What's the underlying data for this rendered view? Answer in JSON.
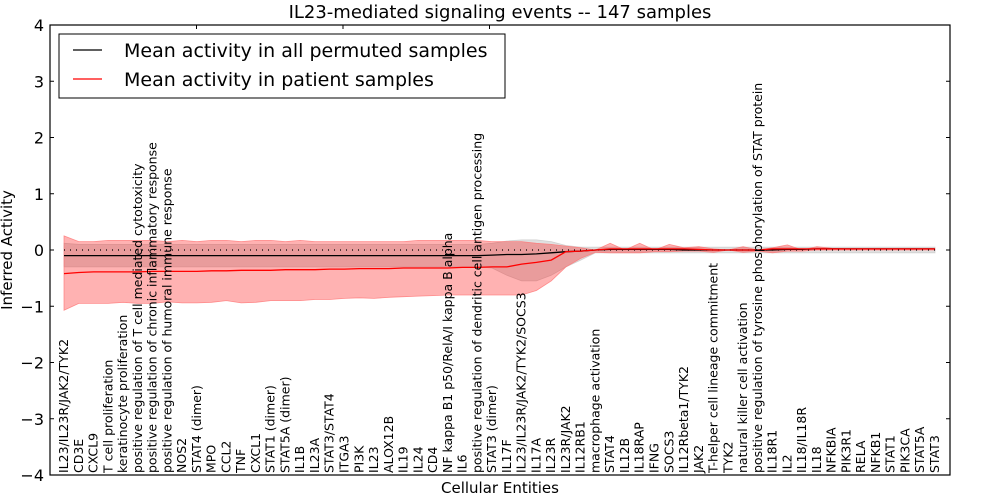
{
  "chart_data": {
    "type": "line",
    "title": "IL23-mediated signaling events -- 147 samples",
    "xlabel": "Cellular Entities",
    "ylabel": "Inferred Activity",
    "ylim": [
      -4,
      4
    ],
    "yticks": [
      -4,
      -3,
      -2,
      -1,
      0,
      1,
      2,
      3,
      4
    ],
    "ytick_labels": [
      "−4",
      "−3",
      "−2",
      "−1",
      "0",
      "1",
      "2",
      "3",
      "4"
    ],
    "grid": false,
    "legend_position": "top-left",
    "reference_line": {
      "y": 0,
      "style": "dotted"
    },
    "categories": [
      "IL23/IL23R/JAK2/TYK2",
      "CD3E",
      "CXCL9",
      "T cell proliferation",
      "keratinocyte proliferation",
      "positive regulation of T cell mediated cytotoxicity",
      "positive regulation of chronic inflammatory response",
      "positive regulation of humoral immune response",
      "NOS2",
      "STAT4 (dimer)",
      "MPO",
      "CCL2",
      "TNF",
      "CXCL1",
      "STAT1 (dimer)",
      "STAT5A (dimer)",
      "IL1B",
      "IL23A",
      "STAT3/STAT4",
      "ITGA3",
      "PI3K",
      "IL23",
      "ALOX12B",
      "IL19",
      "IL24",
      "CD4",
      "NF kappa B1 p50/RelA/I kappa B alpha",
      "IL6",
      "positive regulation of dendritic cell antigen processing",
      "STAT3 (dimer)",
      "IL17F",
      "IL23/IL23R/JAK2/TYK2/SOCS3",
      "IL17A",
      "IL23R",
      "IL23R/JAK2",
      "IL12RB1",
      "macrophage activation",
      "STAT4",
      "IL12B",
      "IL18RAP",
      "IFNG",
      "SOCS3",
      "IL12Rbeta1/TYK2",
      "JAK2",
      "T-helper cell lineage commitment",
      "TYK2",
      "natural killer cell activation",
      "positive regulation of tyrosine phosphorylation of STAT protein",
      "IL18R1",
      "IL2",
      "IL18/IL18R",
      "IL18",
      "NFKBIA",
      "PIK3R1",
      "RELA",
      "NFKB1",
      "STAT1",
      "PIK3CA",
      "STAT5A",
      "STAT3"
    ],
    "series": [
      {
        "name": "Mean activity in all permuted samples",
        "color": "#000000",
        "values": [
          -0.1,
          -0.1,
          -0.1,
          -0.1,
          -0.1,
          -0.1,
          -0.1,
          -0.1,
          -0.1,
          -0.1,
          -0.1,
          -0.1,
          -0.1,
          -0.1,
          -0.1,
          -0.1,
          -0.1,
          -0.1,
          -0.1,
          -0.1,
          -0.1,
          -0.1,
          -0.1,
          -0.1,
          -0.1,
          -0.1,
          -0.1,
          -0.1,
          -0.1,
          -0.09,
          -0.08,
          -0.08,
          -0.07,
          -0.05,
          -0.03,
          -0.02,
          0.0,
          0.01,
          0.01,
          0.01,
          0.01,
          0.01,
          0.0,
          0.0,
          0.0,
          0.0,
          0.0,
          0.0,
          0.0,
          0.01,
          0.01,
          0.02,
          0.02,
          0.02,
          0.02,
          0.02,
          0.02,
          0.02,
          0.02,
          0.02
        ],
        "band": {
          "color": "#bbbbbb",
          "lower": [
            -0.3,
            -0.3,
            -0.3,
            -0.3,
            -0.3,
            -0.3,
            -0.3,
            -0.3,
            -0.3,
            -0.3,
            -0.3,
            -0.3,
            -0.3,
            -0.3,
            -0.3,
            -0.3,
            -0.3,
            -0.3,
            -0.3,
            -0.3,
            -0.3,
            -0.3,
            -0.3,
            -0.3,
            -0.3,
            -0.3,
            -0.3,
            -0.3,
            -0.3,
            -0.32,
            -0.45,
            -0.55,
            -0.55,
            -0.45,
            -0.3,
            -0.18,
            -0.05,
            -0.05,
            -0.05,
            -0.05,
            -0.05,
            -0.05,
            -0.05,
            -0.05,
            -0.05,
            -0.05,
            -0.05,
            -0.05,
            -0.05,
            -0.05,
            -0.05,
            -0.05,
            -0.05,
            -0.05,
            -0.05,
            -0.05,
            -0.05,
            -0.05,
            -0.05,
            -0.05
          ],
          "upper": [
            0.12,
            0.1,
            0.1,
            0.1,
            0.1,
            0.1,
            0.1,
            0.1,
            0.1,
            0.1,
            0.1,
            0.1,
            0.1,
            0.1,
            0.1,
            0.1,
            0.1,
            0.1,
            0.1,
            0.1,
            0.1,
            0.1,
            0.1,
            0.1,
            0.1,
            0.1,
            0.1,
            0.1,
            0.1,
            0.12,
            0.16,
            0.18,
            0.18,
            0.15,
            0.08,
            0.05,
            0.05,
            0.05,
            0.05,
            0.05,
            0.05,
            0.05,
            0.05,
            0.05,
            0.05,
            0.05,
            0.05,
            0.05,
            0.05,
            0.05,
            0.05,
            0.05,
            0.05,
            0.05,
            0.05,
            0.05,
            0.05,
            0.05,
            0.05,
            0.05
          ]
        }
      },
      {
        "name": "Mean activity in patient samples",
        "color": "#ff0000",
        "values": [
          -0.42,
          -0.4,
          -0.39,
          -0.39,
          -0.39,
          -0.39,
          -0.38,
          -0.38,
          -0.38,
          -0.38,
          -0.37,
          -0.37,
          -0.36,
          -0.36,
          -0.36,
          -0.35,
          -0.35,
          -0.35,
          -0.34,
          -0.34,
          -0.33,
          -0.33,
          -0.33,
          -0.32,
          -0.32,
          -0.32,
          -0.32,
          -0.31,
          -0.31,
          -0.3,
          -0.3,
          -0.25,
          -0.22,
          -0.18,
          -0.03,
          -0.02,
          0.0,
          0.02,
          0.02,
          0.02,
          0.02,
          0.02,
          0.02,
          0.01,
          0.0,
          0.0,
          0.0,
          0.0,
          0.02,
          0.02,
          0.02,
          0.02,
          0.02,
          0.02,
          0.02,
          0.02,
          0.02,
          0.02,
          0.02,
          0.02
        ],
        "band": {
          "color": "#ff6666",
          "lower": [
            -1.07,
            -0.95,
            -0.95,
            -0.95,
            -0.93,
            -0.95,
            -0.95,
            -0.92,
            -0.94,
            -0.94,
            -0.93,
            -0.9,
            -0.94,
            -0.93,
            -0.9,
            -0.9,
            -0.9,
            -0.88,
            -0.88,
            -0.86,
            -0.85,
            -0.86,
            -0.84,
            -0.83,
            -0.82,
            -0.81,
            -0.8,
            -0.8,
            -0.8,
            -0.8,
            -0.8,
            -0.8,
            -0.72,
            -0.55,
            -0.3,
            -0.15,
            -0.04,
            -0.05,
            -0.05,
            -0.05,
            -0.03,
            -0.03,
            -0.02,
            -0.02,
            -0.04,
            0.0,
            -0.04,
            -0.02,
            -0.05,
            -0.02,
            -0.02,
            0.0,
            0.0,
            0.0,
            0.0,
            0.0,
            0.0,
            0.0,
            0.0,
            0.0
          ],
          "upper": [
            0.25,
            0.15,
            0.15,
            0.17,
            0.17,
            0.17,
            0.17,
            0.15,
            0.17,
            0.15,
            0.17,
            0.17,
            0.15,
            0.17,
            0.17,
            0.15,
            0.17,
            0.15,
            0.15,
            0.15,
            0.15,
            0.15,
            0.15,
            0.15,
            0.17,
            0.17,
            0.17,
            0.17,
            0.17,
            0.15,
            0.15,
            0.15,
            0.12,
            0.1,
            0.07,
            0.04,
            0.0,
            0.12,
            0.0,
            0.12,
            0.0,
            0.1,
            0.04,
            0.06,
            0.02,
            0.0,
            0.06,
            0.0,
            0.04,
            0.09,
            0.0,
            0.06,
            0.03,
            0.02,
            0.02,
            0.02,
            0.02,
            0.02,
            0.02,
            0.02
          ]
        }
      }
    ]
  }
}
